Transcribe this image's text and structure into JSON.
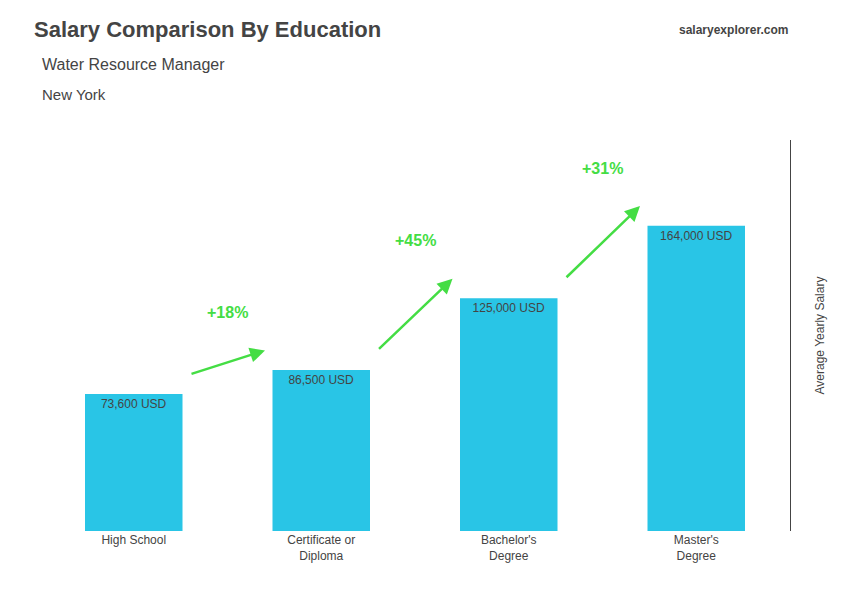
{
  "chart_data": {
    "type": "bar",
    "title": "Salary Comparison By Education",
    "subtitle": [
      "Water Resource Manager",
      "New York"
    ],
    "ylabel": "Average Yearly Salary",
    "categories": [
      "High School",
      "Certificate or\nDiploma",
      "Bachelor's\nDegree",
      "Master's\nDegree"
    ],
    "values": [
      73600,
      86500,
      125000,
      164000
    ],
    "value_labels": [
      "73,600 USD",
      "86,500 USD",
      "125,000 USD",
      "164,000 USD"
    ],
    "data_labels": true,
    "color": "#29c5e6",
    "ylim": [
      0,
      210000
    ],
    "grid": false,
    "tick_labels": "x",
    "annotations": [
      {
        "text": "+18%",
        "from": "High School",
        "to": "Certificate or\nDiploma",
        "color": "#44dd44"
      },
      {
        "text": "+45%",
        "from": "Certificate or\nDiploma",
        "to": "Bachelor's\nDegree",
        "color": "#44dd44"
      },
      {
        "text": "+31%",
        "from": "Bachelor's\nDegree",
        "to": "Master's\nDegree",
        "color": "#44dd44"
      },
      {
        "text": "salaryexplorer.com"
      }
    ]
  }
}
